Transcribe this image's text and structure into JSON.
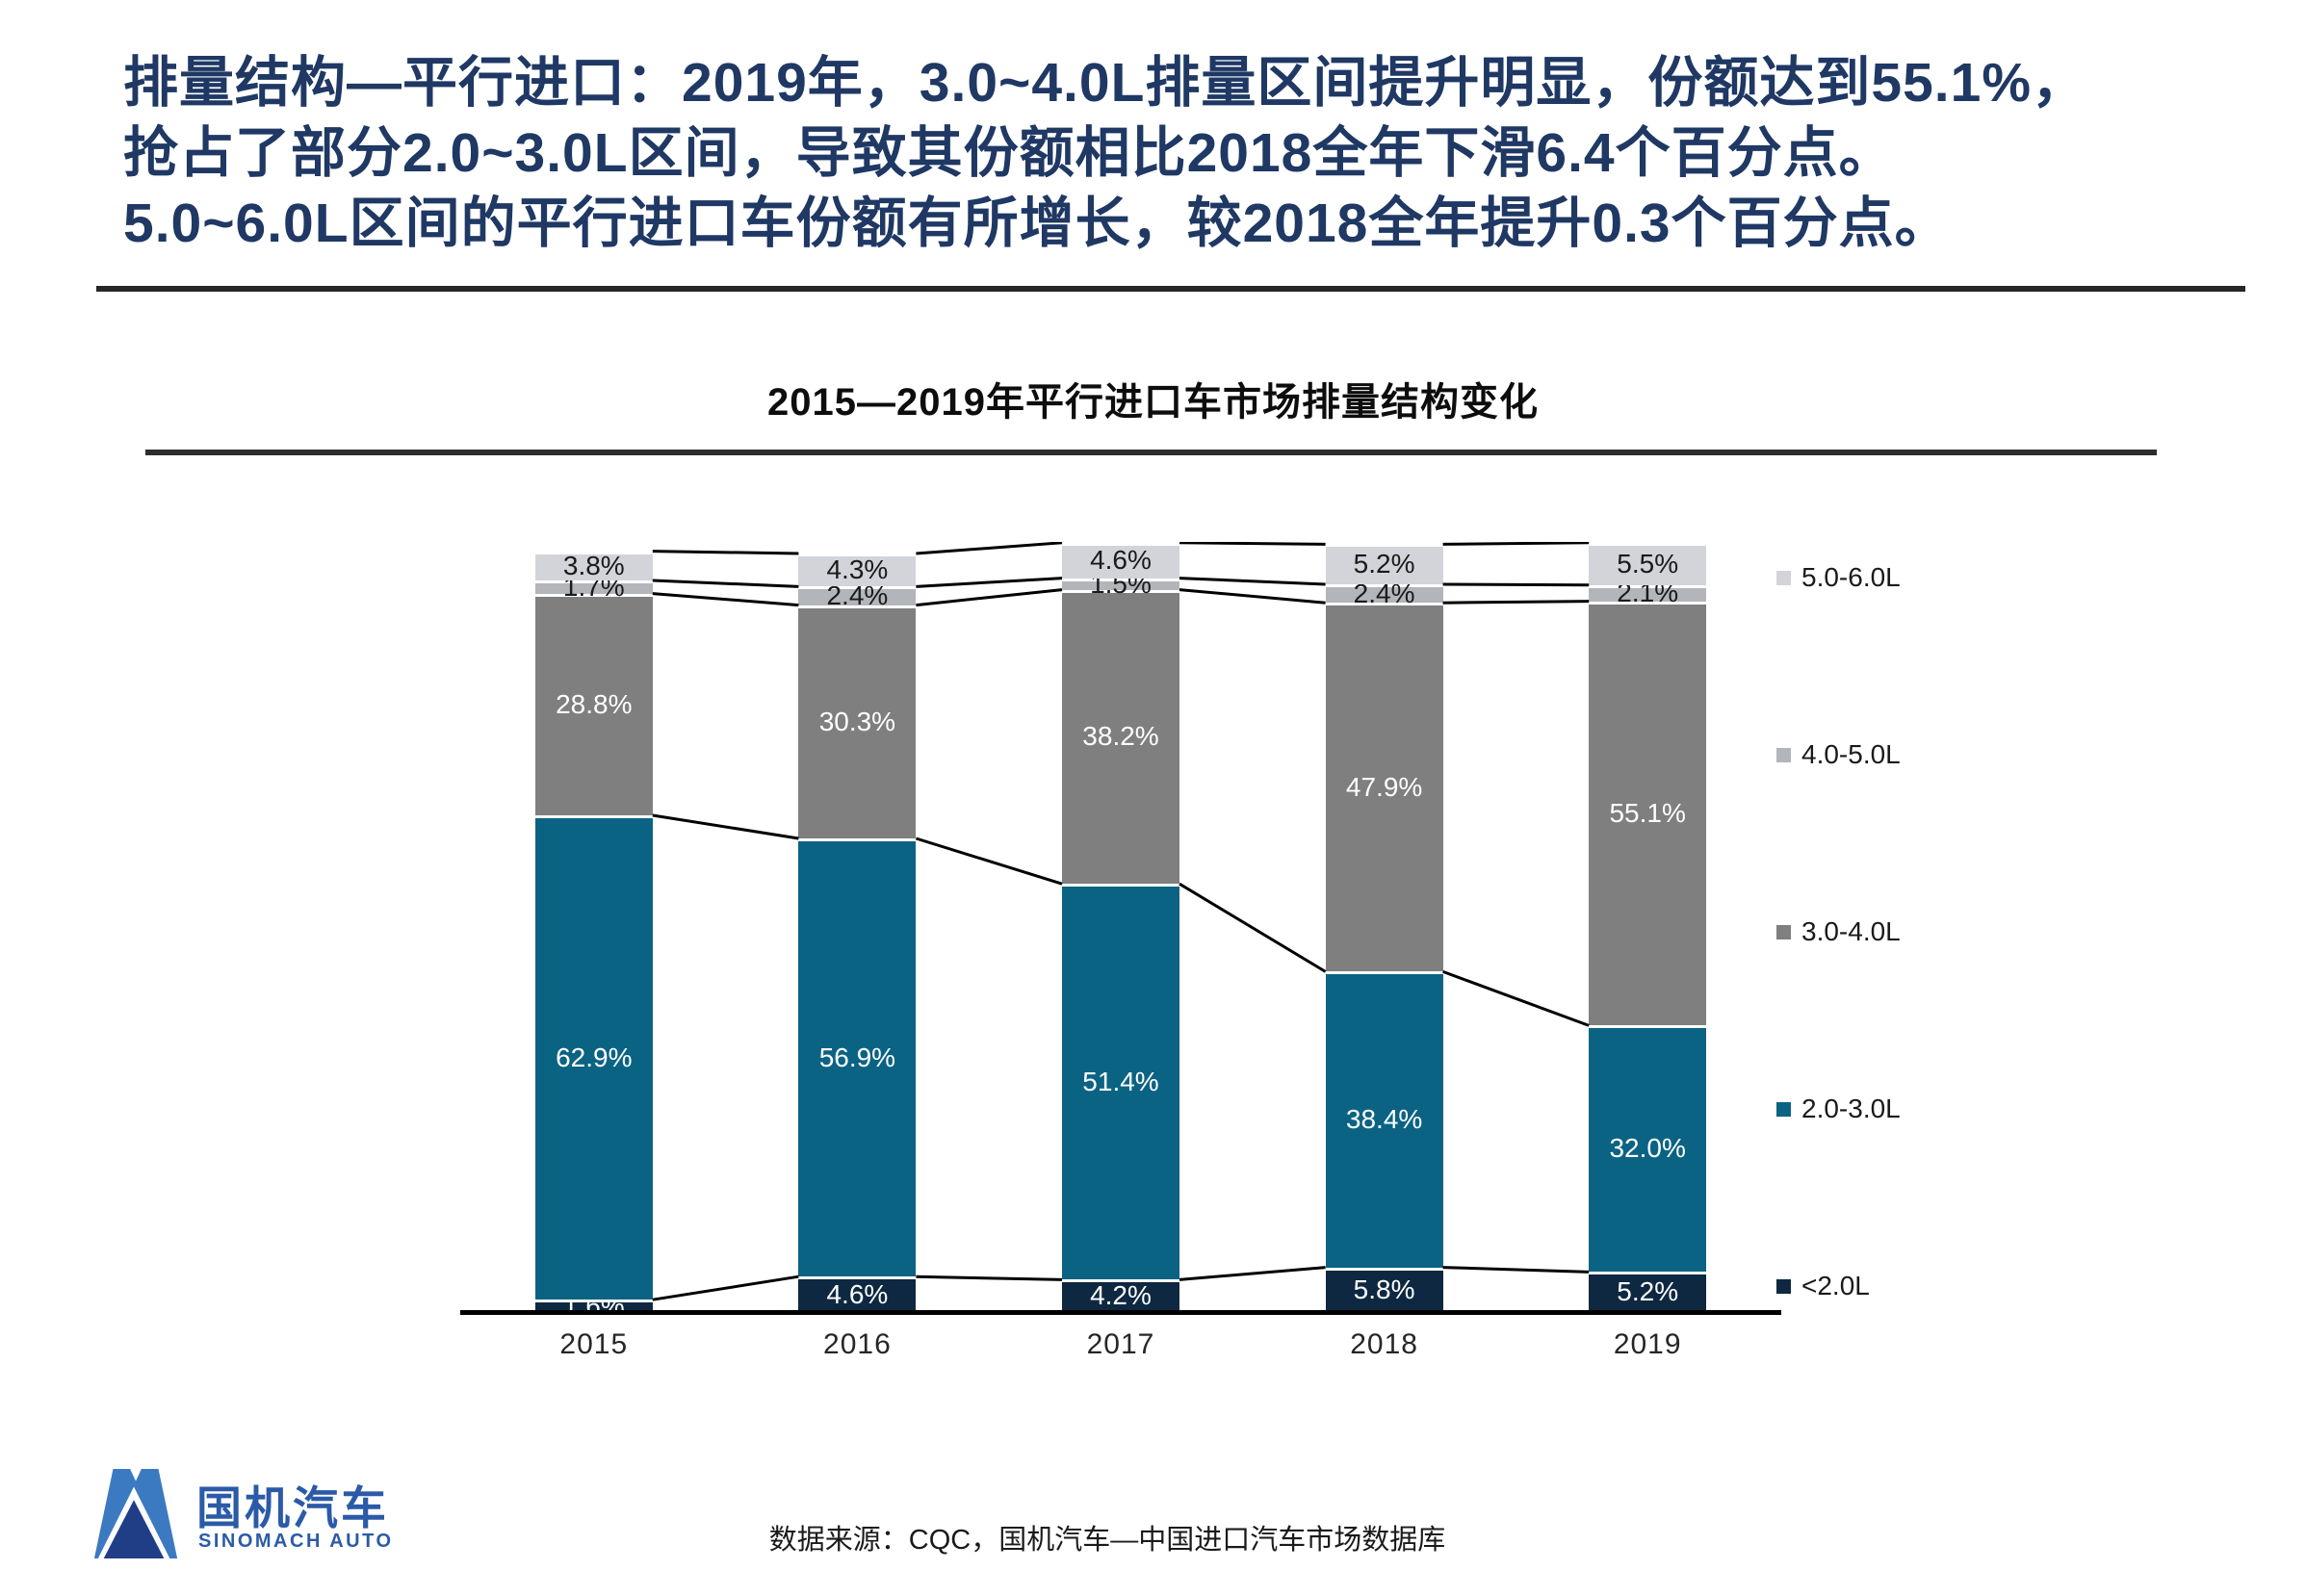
{
  "header": {
    "title_lines": [
      "排量结构—平行进口：2019年，3.0~4.0L排量区间提升明显，份额达到55.1%，",
      "抢占了部分2.0~3.0L区间，导致其份额相比2018全年下滑6.4个百分点。",
      "5.0~6.0L区间的平行进口车份额有所增长，较2018全年提升0.3个百分点。"
    ],
    "title_color": "#1f3864"
  },
  "chart_data": {
    "type": "bar",
    "stacked": true,
    "title": "2015—2019年平行进口车市场排量结构变化",
    "categories": [
      "2015",
      "2016",
      "2017",
      "2018",
      "2019"
    ],
    "series": [
      {
        "name": "<2.0L",
        "color": "#0e2841",
        "label_color": "#ffffff",
        "values": [
          1.6,
          4.6,
          4.2,
          5.8,
          5.2
        ]
      },
      {
        "name": "2.0-3.0L",
        "color": "#0b6384",
        "label_color": "#ffffff",
        "values": [
          62.9,
          56.9,
          51.4,
          38.4,
          32.0
        ]
      },
      {
        "name": "3.0-4.0L",
        "color": "#7f7f7f",
        "label_color": "#ffffff",
        "values": [
          28.8,
          30.3,
          38.2,
          47.9,
          55.1
        ]
      },
      {
        "name": "4.0-5.0L",
        "color": "#b2b5ba",
        "label_color": "#1a1a1a",
        "values": [
          1.7,
          2.4,
          1.5,
          2.4,
          2.1
        ]
      },
      {
        "name": "5.0-6.0L",
        "color": "#d2d4d9",
        "label_color": "#1a1a1a",
        "values": [
          3.8,
          4.3,
          4.6,
          5.2,
          5.5
        ]
      }
    ],
    "value_suffix": "%",
    "ylim": [
      0,
      100
    ],
    "legend_position": "right",
    "legend_order_top_to_bottom": [
      "5.0-6.0L",
      "4.0-5.0L",
      "3.0-4.0L",
      "2.0-3.0L",
      "<2.0L"
    ],
    "connector_lines": true,
    "connector_color": "#000000",
    "axis_line_color": "#000000"
  },
  "footer": {
    "logo_cn": "国机汽车",
    "logo_en": "SINOMACH AUTO",
    "source": "数据来源：CQC，国机汽车—中国进口汽车市场数据库"
  }
}
